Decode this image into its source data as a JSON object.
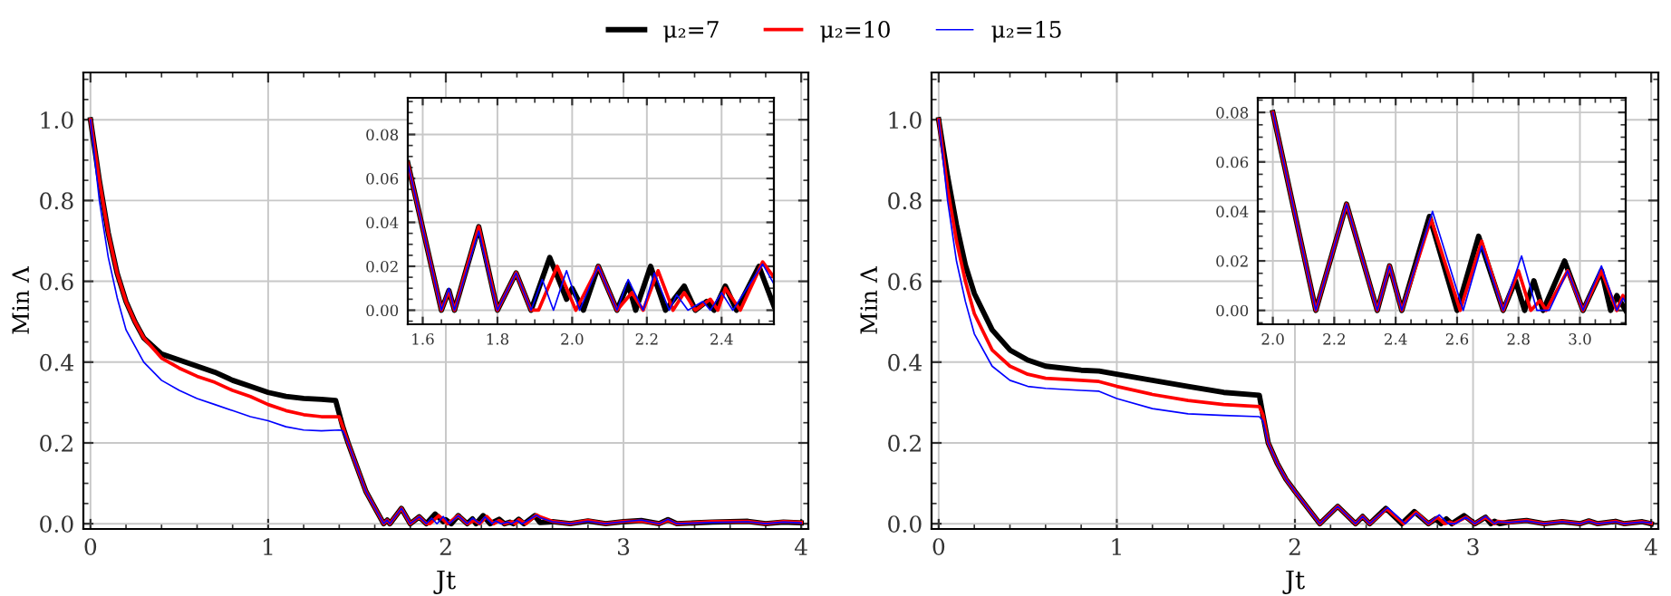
{
  "chart_data": [
    {
      "type": "line",
      "xlabel": "Jt",
      "ylabel": "Min Λ",
      "xlim": [
        -0.04,
        4.04
      ],
      "ylim": [
        -0.013,
        1.117
      ],
      "xticks": [
        0,
        1,
        2,
        3,
        4
      ],
      "yticks": [
        {
          "value": 0,
          "label": "0.0"
        },
        {
          "value": 0.2,
          "label": "0.2"
        },
        {
          "value": 0.4,
          "label": "0.4"
        },
        {
          "value": 0.6,
          "label": "0.6"
        },
        {
          "value": 0.8,
          "label": "0.8"
        },
        {
          "value": 1.0,
          "label": "1.0"
        }
      ],
      "grid": true,
      "legend": "top",
      "marker": "none",
      "line_style": "solid",
      "series": [
        {
          "name": "μ₂=7",
          "color": "#000000",
          "x": [
            0,
            0.05,
            0.1,
            0.15,
            0.2,
            0.25,
            0.3,
            0.4,
            0.5,
            0.6,
            0.7,
            0.8,
            0.9,
            1.0,
            1.1,
            1.2,
            1.3,
            1.38,
            1.42,
            1.45,
            1.5,
            1.55,
            1.6,
            1.65,
            1.67,
            1.685,
            1.75,
            1.8,
            1.85,
            1.89,
            1.94,
            1.985,
            2.0,
            2.03,
            2.07,
            2.12,
            2.15,
            2.17,
            2.21,
            2.25,
            2.3,
            2.33,
            2.36,
            2.38,
            2.41,
            2.44,
            2.5,
            2.53,
            2.6,
            2.7,
            2.8,
            2.9,
            3.0,
            3.1,
            3.2,
            3.25,
            3.3,
            3.5,
            3.7,
            3.8,
            3.9,
            4.0
          ],
          "values": [
            1.0,
            0.85,
            0.72,
            0.62,
            0.55,
            0.5,
            0.46,
            0.42,
            0.405,
            0.39,
            0.375,
            0.355,
            0.34,
            0.325,
            0.315,
            0.31,
            0.308,
            0.305,
            0.24,
            0.2,
            0.14,
            0.08,
            0.04,
            0.0,
            0.009,
            0.0,
            0.038,
            0.0,
            0.017,
            0.0,
            0.024,
            0.005,
            0.01,
            0.0,
            0.02,
            0.0,
            0.012,
            0.0,
            0.02,
            0.0,
            0.011,
            0.0,
            0.004,
            0.0,
            0.011,
            0.0,
            0.02,
            0.003,
            0.005,
            0.0,
            0.007,
            0.0,
            0.005,
            0.008,
            0.0,
            0.01,
            0.0,
            0.004,
            0.006,
            0.0,
            0.004,
            0.002
          ]
        },
        {
          "name": "μ₂=10",
          "color": "#ff0000",
          "x": [
            0,
            0.05,
            0.1,
            0.15,
            0.2,
            0.25,
            0.3,
            0.4,
            0.5,
            0.6,
            0.7,
            0.8,
            0.9,
            1.0,
            1.1,
            1.2,
            1.3,
            1.4,
            1.42,
            1.45,
            1.5,
            1.55,
            1.6,
            1.65,
            1.67,
            1.685,
            1.75,
            1.8,
            1.85,
            1.89,
            1.91,
            1.96,
            2.01,
            2.07,
            2.12,
            2.16,
            2.19,
            2.23,
            2.27,
            2.3,
            2.33,
            2.37,
            2.39,
            2.41,
            2.45,
            2.51,
            2.53,
            2.6,
            2.7,
            2.8,
            2.9,
            3.0,
            3.1,
            3.2,
            3.25,
            3.3,
            3.5,
            3.7,
            3.8,
            3.9,
            4.0
          ],
          "values": [
            1.0,
            0.85,
            0.72,
            0.62,
            0.55,
            0.5,
            0.46,
            0.41,
            0.385,
            0.365,
            0.35,
            0.33,
            0.315,
            0.295,
            0.28,
            0.27,
            0.265,
            0.265,
            0.24,
            0.2,
            0.14,
            0.08,
            0.04,
            0.0,
            0.009,
            0.0,
            0.038,
            0.0,
            0.017,
            0.0,
            0.0,
            0.02,
            0.0,
            0.02,
            0.0,
            0.008,
            0.0,
            0.018,
            0.0,
            0.008,
            0.0,
            0.005,
            0.0,
            0.01,
            0.0,
            0.022,
            0.017,
            0.006,
            0.0,
            0.008,
            0.0,
            0.006,
            0.007,
            0.0,
            0.009,
            0.0,
            0.005,
            0.006,
            0.0,
            0.005,
            0.003
          ]
        },
        {
          "name": "μ₂=15",
          "color": "#0000ff",
          "x": [
            0,
            0.05,
            0.1,
            0.15,
            0.2,
            0.3,
            0.4,
            0.5,
            0.6,
            0.7,
            0.8,
            0.9,
            1.0,
            1.1,
            1.2,
            1.3,
            1.4,
            1.42,
            1.45,
            1.5,
            1.55,
            1.6,
            1.65,
            1.67,
            1.685,
            1.75,
            1.8,
            1.85,
            1.89,
            1.92,
            1.95,
            1.985,
            2.02,
            2.07,
            2.12,
            2.15,
            2.19,
            2.22,
            2.26,
            2.28,
            2.31,
            2.35,
            2.37,
            2.4,
            2.43,
            2.51,
            2.53,
            2.6,
            2.7,
            2.8,
            2.9,
            3.0,
            3.1,
            3.2,
            3.25,
            3.3,
            3.5,
            3.7,
            3.8,
            3.9,
            4.0
          ],
          "values": [
            1.0,
            0.8,
            0.66,
            0.56,
            0.48,
            0.4,
            0.355,
            0.33,
            0.31,
            0.295,
            0.28,
            0.265,
            0.255,
            0.24,
            0.232,
            0.23,
            0.232,
            0.23,
            0.2,
            0.14,
            0.08,
            0.04,
            0.0,
            0.009,
            0.0,
            0.038,
            0.0,
            0.017,
            0.0,
            0.014,
            0.0,
            0.018,
            0.0,
            0.02,
            0.0,
            0.014,
            0.0,
            0.017,
            0.0,
            0.007,
            0.0,
            0.004,
            0.0,
            0.008,
            0.0,
            0.021,
            0.015,
            0.005,
            0.0,
            0.006,
            0.0,
            0.005,
            0.009,
            0.0,
            0.011,
            0.0,
            0.003,
            0.005,
            0.0,
            0.004,
            0.002
          ]
        }
      ]
    },
    {
      "type": "line",
      "xlim": [
        1.56,
        2.54
      ],
      "ylim": [
        -0.0064,
        0.0967
      ],
      "xticks": [
        {
          "value": 1.6,
          "label": "1.6"
        },
        {
          "value": 1.8,
          "label": "1.8"
        },
        {
          "value": 2.0,
          "label": "2.0"
        },
        {
          "value": 2.2,
          "label": "2.2"
        },
        {
          "value": 2.4,
          "label": "2.4"
        }
      ],
      "yticks": [
        {
          "value": 0,
          "label": "0.00"
        },
        {
          "value": 0.02,
          "label": "0.02"
        },
        {
          "value": 0.04,
          "label": "0.04"
        },
        {
          "value": 0.06,
          "label": "0.06"
        },
        {
          "value": 0.08,
          "label": "0.08"
        }
      ],
      "grid": true,
      "marker": "none",
      "line_style": "solid",
      "series": [
        {
          "color": "#000000",
          "x": [
            1.56,
            1.65,
            1.67,
            1.685,
            1.75,
            1.8,
            1.85,
            1.89,
            1.94,
            1.985,
            2.0,
            2.03,
            2.07,
            2.12,
            2.15,
            2.17,
            2.21,
            2.25,
            2.3,
            2.33,
            2.36,
            2.38,
            2.41,
            2.44,
            2.5,
            2.54
          ],
          "values": [
            0.067,
            0.0,
            0.009,
            0.0,
            0.038,
            0.0,
            0.017,
            0.0,
            0.024,
            0.005,
            0.01,
            0.0,
            0.02,
            0.0,
            0.012,
            0.0,
            0.02,
            0.0,
            0.011,
            0.0,
            0.004,
            0.0,
            0.011,
            0.0,
            0.02,
            0.002
          ]
        },
        {
          "color": "#ff0000",
          "x": [
            1.56,
            1.65,
            1.67,
            1.685,
            1.75,
            1.8,
            1.85,
            1.89,
            1.91,
            1.96,
            2.01,
            2.07,
            2.12,
            2.16,
            2.19,
            2.23,
            2.27,
            2.3,
            2.33,
            2.37,
            2.39,
            2.41,
            2.45,
            2.51,
            2.54
          ],
          "values": [
            0.067,
            0.0,
            0.009,
            0.0,
            0.038,
            0.0,
            0.017,
            0.0,
            0.0,
            0.02,
            0.0,
            0.02,
            0.0,
            0.008,
            0.0,
            0.018,
            0.0,
            0.008,
            0.0,
            0.005,
            0.0,
            0.01,
            0.0,
            0.022,
            0.015
          ]
        },
        {
          "color": "#0000ff",
          "x": [
            1.56,
            1.65,
            1.67,
            1.685,
            1.75,
            1.8,
            1.85,
            1.89,
            1.92,
            1.95,
            1.985,
            2.02,
            2.07,
            2.12,
            2.15,
            2.19,
            2.22,
            2.26,
            2.28,
            2.31,
            2.35,
            2.37,
            2.4,
            2.43,
            2.51,
            2.54
          ],
          "values": [
            0.067,
            0.0,
            0.01,
            0.0,
            0.036,
            0.0,
            0.017,
            0.0,
            0.014,
            0.0,
            0.018,
            0.0,
            0.02,
            0.0,
            0.014,
            0.0,
            0.017,
            0.0,
            0.007,
            0.0,
            0.004,
            0.0,
            0.008,
            0.0,
            0.021,
            0.012
          ]
        }
      ]
    },
    {
      "type": "line",
      "xlabel": "Jt",
      "ylabel": "Min Λ",
      "xlim": [
        -0.04,
        4.04
      ],
      "ylim": [
        -0.013,
        1.117
      ],
      "xticks": [
        0,
        1,
        2,
        3,
        4
      ],
      "yticks": [
        {
          "value": 0,
          "label": "0.0"
        },
        {
          "value": 0.2,
          "label": "0.2"
        },
        {
          "value": 0.4,
          "label": "0.4"
        },
        {
          "value": 0.6,
          "label": "0.6"
        },
        {
          "value": 0.8,
          "label": "0.8"
        },
        {
          "value": 1.0,
          "label": "1.0"
        }
      ],
      "grid": true,
      "marker": "none",
      "line_style": "solid",
      "series": [
        {
          "color": "#000000",
          "x": [
            0,
            0.05,
            0.1,
            0.15,
            0.2,
            0.3,
            0.4,
            0.5,
            0.6,
            0.7,
            0.8,
            0.9,
            1.0,
            1.2,
            1.4,
            1.6,
            1.8,
            1.82,
            1.85,
            1.9,
            1.95,
            2.0,
            2.14,
            2.24,
            2.34,
            2.38,
            2.42,
            2.51,
            2.6,
            2.67,
            2.75,
            2.79,
            2.82,
            2.85,
            2.88,
            2.95,
            3.01,
            3.07,
            3.1,
            3.12,
            3.15,
            3.2,
            3.3,
            3.4,
            3.5,
            3.6,
            3.65,
            3.7,
            3.8,
            3.85,
            3.95,
            4.0
          ],
          "values": [
            1.0,
            0.86,
            0.74,
            0.64,
            0.57,
            0.48,
            0.43,
            0.405,
            0.39,
            0.385,
            0.38,
            0.378,
            0.37,
            0.355,
            0.34,
            0.325,
            0.318,
            0.27,
            0.2,
            0.15,
            0.11,
            0.08,
            0.0,
            0.043,
            0.0,
            0.018,
            0.0,
            0.038,
            0.0,
            0.03,
            0.0,
            0.012,
            0.0,
            0.012,
            0.0,
            0.02,
            0.0,
            0.016,
            0.0,
            0.006,
            0.0,
            0.004,
            0.008,
            0.0,
            0.005,
            0.0,
            0.007,
            0.0,
            0.006,
            0.0,
            0.005,
            0.0
          ]
        },
        {
          "color": "#ff0000",
          "x": [
            0,
            0.05,
            0.1,
            0.15,
            0.2,
            0.3,
            0.4,
            0.5,
            0.6,
            0.8,
            0.9,
            1.0,
            1.2,
            1.4,
            1.6,
            1.8,
            1.82,
            1.85,
            1.9,
            1.95,
            2.0,
            2.14,
            2.24,
            2.34,
            2.38,
            2.42,
            2.515,
            2.61,
            2.68,
            2.75,
            2.8,
            2.84,
            2.87,
            2.89,
            2.96,
            3.01,
            3.07,
            3.12,
            3.14,
            3.2,
            3.3,
            3.4,
            3.5,
            3.6,
            3.65,
            3.7,
            3.8,
            3.85,
            3.95,
            4.0
          ],
          "values": [
            1.0,
            0.83,
            0.7,
            0.6,
            0.52,
            0.43,
            0.39,
            0.37,
            0.36,
            0.355,
            0.352,
            0.34,
            0.32,
            0.305,
            0.295,
            0.29,
            0.27,
            0.2,
            0.15,
            0.11,
            0.08,
            0.0,
            0.043,
            0.0,
            0.018,
            0.0,
            0.037,
            0.0,
            0.028,
            0.0,
            0.016,
            0.0,
            0.004,
            0.0,
            0.016,
            0.0,
            0.016,
            0.0,
            0.006,
            0.003,
            0.008,
            0.0,
            0.006,
            0.0,
            0.007,
            0.0,
            0.006,
            0.0,
            0.005,
            0.001
          ]
        },
        {
          "color": "#0000ff",
          "x": [
            0,
            0.05,
            0.1,
            0.15,
            0.2,
            0.3,
            0.4,
            0.5,
            0.6,
            0.8,
            0.9,
            1.0,
            1.2,
            1.4,
            1.6,
            1.8,
            1.82,
            1.85,
            1.9,
            1.95,
            2.0,
            2.14,
            2.24,
            2.34,
            2.38,
            2.42,
            2.52,
            2.62,
            2.68,
            2.75,
            2.81,
            2.86,
            2.9,
            2.96,
            3.01,
            3.07,
            3.12,
            3.14,
            3.2,
            3.3,
            3.4,
            3.5,
            3.6,
            3.65,
            3.7,
            3.8,
            3.85,
            3.95,
            4.0
          ],
          "values": [
            1.0,
            0.8,
            0.65,
            0.55,
            0.47,
            0.39,
            0.355,
            0.34,
            0.335,
            0.33,
            0.328,
            0.31,
            0.285,
            0.272,
            0.268,
            0.265,
            0.255,
            0.2,
            0.15,
            0.11,
            0.08,
            0.0,
            0.043,
            0.0,
            0.018,
            0.0,
            0.04,
            0.0,
            0.026,
            0.0,
            0.022,
            0.0,
            0.0,
            0.016,
            0.0,
            0.018,
            0.0,
            0.005,
            0.003,
            0.007,
            0.0,
            0.005,
            0.0,
            0.006,
            0.0,
            0.005,
            0.0,
            0.004,
            0.002
          ]
        }
      ]
    },
    {
      "type": "line",
      "xlim": [
        1.951,
        3.149
      ],
      "ylim": [
        -0.0056,
        0.0859
      ],
      "xticks": [
        {
          "value": 2.0,
          "label": "2.0"
        },
        {
          "value": 2.2,
          "label": "2.2"
        },
        {
          "value": 2.4,
          "label": "2.4"
        },
        {
          "value": 2.6,
          "label": "2.6"
        },
        {
          "value": 2.8,
          "label": "2.8"
        },
        {
          "value": 3.0,
          "label": "3.0"
        }
      ],
      "yticks": [
        {
          "value": 0,
          "label": "0.00"
        },
        {
          "value": 0.02,
          "label": "0.02"
        },
        {
          "value": 0.04,
          "label": "0.04"
        },
        {
          "value": 0.06,
          "label": "0.06"
        },
        {
          "value": 0.08,
          "label": "0.08"
        }
      ],
      "grid": true,
      "marker": "none",
      "line_style": "solid",
      "series": [
        {
          "color": "#000000",
          "x": [
            2.0,
            2.14,
            2.24,
            2.34,
            2.38,
            2.42,
            2.51,
            2.6,
            2.67,
            2.75,
            2.79,
            2.82,
            2.85,
            2.88,
            2.95,
            3.01,
            3.07,
            3.1,
            3.12,
            3.149
          ],
          "values": [
            0.08,
            0.0,
            0.043,
            0.0,
            0.018,
            0.0,
            0.038,
            0.0,
            0.03,
            0.0,
            0.012,
            0.0,
            0.012,
            0.0,
            0.02,
            0.0,
            0.016,
            0.0,
            0.006,
            0.0
          ]
        },
        {
          "color": "#ff0000",
          "x": [
            2.0,
            2.14,
            2.24,
            2.34,
            2.38,
            2.42,
            2.515,
            2.61,
            2.68,
            2.75,
            2.8,
            2.84,
            2.87,
            2.89,
            2.96,
            3.01,
            3.07,
            3.12,
            3.14,
            3.149
          ],
          "values": [
            0.08,
            0.0,
            0.043,
            0.0,
            0.018,
            0.0,
            0.037,
            0.0,
            0.028,
            0.0,
            0.016,
            0.0,
            0.004,
            0.0,
            0.016,
            0.0,
            0.016,
            0.0,
            0.006,
            0.004
          ]
        },
        {
          "color": "#0000ff",
          "x": [
            2.0,
            2.14,
            2.24,
            2.34,
            2.38,
            2.42,
            2.52,
            2.62,
            2.68,
            2.75,
            2.81,
            2.86,
            2.9,
            2.96,
            3.01,
            3.07,
            3.12,
            3.14,
            3.149
          ],
          "values": [
            0.08,
            0.0,
            0.043,
            0.0,
            0.018,
            0.0,
            0.04,
            0.0,
            0.026,
            0.0,
            0.022,
            0.0,
            0.0,
            0.016,
            0.0,
            0.018,
            0.0,
            0.005,
            0.003
          ]
        }
      ]
    }
  ]
}
